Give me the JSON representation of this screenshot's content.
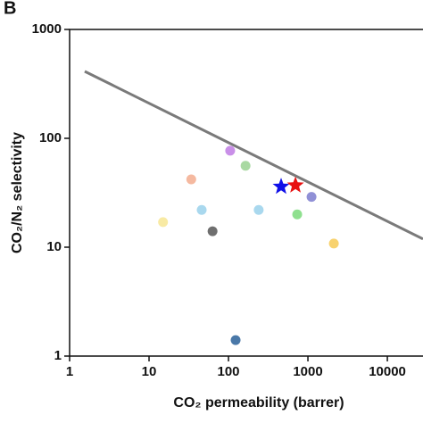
{
  "chart_data": {
    "type": "scatter",
    "panel_label": "B",
    "xlabel": "CO₂ permeability (barrer)",
    "ylabel": "CO₂/N₂ selectivity",
    "xscale": "log",
    "yscale": "log",
    "xlim": [
      1,
      28100
    ],
    "ylim": [
      1,
      1000
    ],
    "xticks": [
      1,
      10,
      100,
      1000,
      10000
    ],
    "yticks": [
      1,
      10,
      100,
      1000
    ],
    "points": {
      "x": [
        105,
        164,
        34,
        46,
        15,
        63,
        240,
        733,
        1110,
        2120,
        123
      ],
      "y": [
        77,
        56,
        42,
        22,
        17,
        14,
        22,
        20,
        29,
        10.8,
        1.4
      ],
      "colors": [
        "#c98fe8",
        "#a9d9a2",
        "#f5b9a0",
        "#a9d8ee",
        "#f8eaa4",
        "#6f6f6f",
        "#a9d8ee",
        "#8fe08f",
        "#9090d6",
        "#f8d26e",
        "#4a78a8"
      ]
    },
    "stars": {
      "x": [
        460,
        697
      ],
      "y": [
        36,
        37
      ],
      "colors": [
        "#1010e8",
        "#e81010"
      ]
    },
    "upper_bound": {
      "x": [
        1.55,
        28100
      ],
      "y": [
        412,
        11.9
      ],
      "color": "#7a7a7a"
    }
  }
}
